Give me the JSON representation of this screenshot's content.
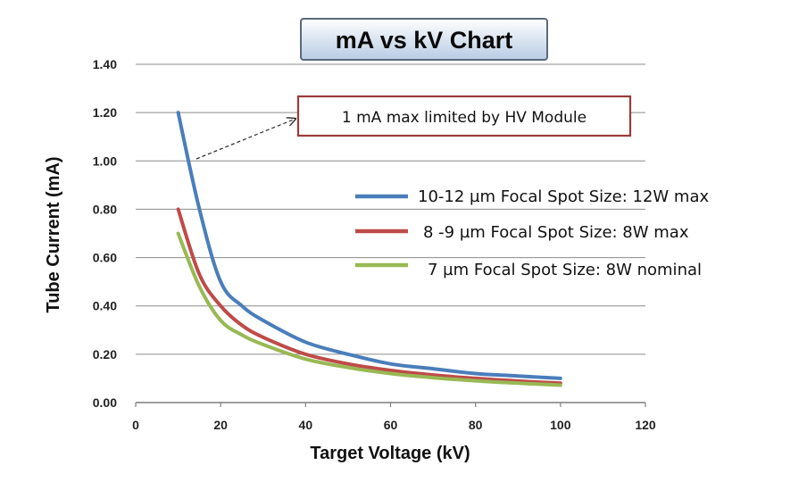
{
  "chart_data": {
    "type": "line",
    "title": "mA vs kV Chart",
    "xlabel": "Target Voltage (kV)",
    "ylabel": "Tube Current (mA)",
    "xlim": [
      0,
      120
    ],
    "ylim": [
      0,
      1.4
    ],
    "x_ticks": [
      "0",
      "20",
      "40",
      "60",
      "80",
      "100",
      "120"
    ],
    "y_ticks": [
      "0.00",
      "0.20",
      "0.40",
      "0.60",
      "0.80",
      "1.00",
      "1.20",
      "1.40"
    ],
    "grid": "horizontal",
    "legend_position": "right",
    "series": [
      {
        "name": "10-12 µm Focal Spot Size: 12W max",
        "color": "#4a7ebb",
        "x": [
          10,
          15,
          20,
          25,
          30,
          40,
          50,
          60,
          70,
          80,
          90,
          100
        ],
        "y": [
          1.2,
          0.8,
          0.5,
          0.4,
          0.34,
          0.25,
          0.2,
          0.16,
          0.14,
          0.12,
          0.11,
          0.1
        ]
      },
      {
        "name": "8 -9 µm Focal Spot Size: 8W max",
        "color": "#be4b48",
        "x": [
          10,
          15,
          20,
          25,
          30,
          40,
          50,
          60,
          70,
          80,
          90,
          100
        ],
        "y": [
          0.8,
          0.53,
          0.4,
          0.32,
          0.27,
          0.2,
          0.16,
          0.133,
          0.114,
          0.1,
          0.089,
          0.08
        ]
      },
      {
        "name": "7 µm Focal Spot Size: 8W nominal",
        "color": "#98b954",
        "x": [
          10,
          15,
          20,
          25,
          30,
          40,
          50,
          60,
          70,
          80,
          90,
          100
        ],
        "y": [
          0.7,
          0.48,
          0.34,
          0.28,
          0.24,
          0.18,
          0.145,
          0.12,
          0.103,
          0.09,
          0.08,
          0.072
        ]
      }
    ],
    "annotations": [
      {
        "text": "1 mA max limited by HV Module",
        "points_to_x": 12,
        "points_to_y": 1.0
      }
    ]
  }
}
